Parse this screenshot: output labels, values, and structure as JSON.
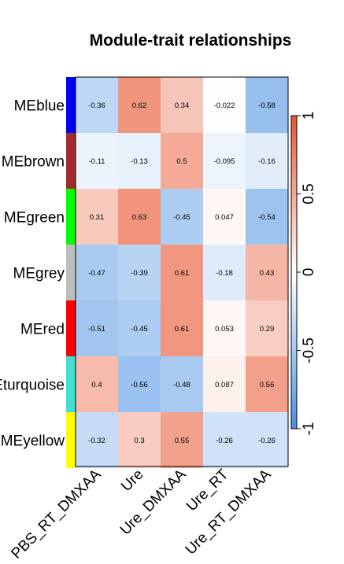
{
  "chart_data": {
    "type": "heatmap",
    "title": "Module-trait relationships",
    "rows": [
      "MEblue",
      "MEbrown",
      "MEgreen",
      "MEgrey",
      "MEred",
      "MEturquoise",
      "MEyellow"
    ],
    "row_colors": [
      "#0000FF",
      "#A52A2A",
      "#00FF00",
      "#BEBEBE",
      "#FF0000",
      "#40E0D0",
      "#FFFF00"
    ],
    "columns": [
      "PBS_RT_DMXAA",
      "Ure",
      "Ure_DMXAA",
      "Ure_RT",
      "Ure_RT_DMXAA"
    ],
    "values": [
      [
        -0.36,
        0.62,
        0.34,
        -0.022,
        -0.58
      ],
      [
        -0.11,
        -0.13,
        0.5,
        -0.095,
        -0.16
      ],
      [
        0.31,
        0.63,
        -0.45,
        0.047,
        -0.54
      ],
      [
        -0.47,
        -0.39,
        0.61,
        -0.18,
        0.43
      ],
      [
        -0.51,
        -0.45,
        0.61,
        0.053,
        0.29
      ],
      [
        0.4,
        -0.56,
        -0.48,
        0.087,
        0.56
      ],
      [
        -0.32,
        0.3,
        0.55,
        -0.26,
        -0.26
      ]
    ],
    "cell_labels": [
      [
        "-0.36",
        "0.62",
        "0.34",
        "-0.022",
        "-0.58"
      ],
      [
        "-0.11",
        "-0.13",
        "0.5",
        "-0.095",
        "-0.16"
      ],
      [
        "0.31",
        "0.63",
        "-0.45",
        "0.047",
        "-0.54"
      ],
      [
        "-0.47",
        "-0.39",
        "0.61",
        "-0.18",
        "0.43"
      ],
      [
        "-0.51",
        "-0.45",
        "0.61",
        "0.053",
        "0.29"
      ],
      [
        "0.4",
        "-0.56",
        "-0.48",
        "0.087",
        "0.56"
      ],
      [
        "-0.32",
        "0.3",
        "0.55",
        "-0.26",
        "-0.26"
      ]
    ],
    "color_scale": {
      "range": [
        -1,
        1
      ],
      "low_color": "#4A90E2",
      "mid_color": "#FFFFFF",
      "high_color": "#E8552E",
      "ticks": [
        "1",
        "0.5",
        "0",
        "-0.5",
        "-1"
      ]
    }
  }
}
